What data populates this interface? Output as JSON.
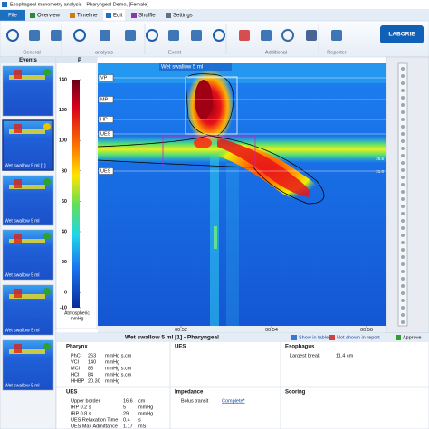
{
  "window": {
    "title": "Esophageal manometry analysis - Pharyngeal Demo, [Female]"
  },
  "tabs": [
    "File",
    "Overview",
    "Timeline",
    "Edit",
    "Shuffle",
    "Settings"
  ],
  "ribbon": {
    "groups": [
      "General",
      "analysis",
      "Event",
      "Additional",
      "Reporter"
    ],
    "logo": "LABORIE"
  },
  "events": {
    "header": "Events",
    "thumbnails": [
      "Wet swallow 5 ml [1]",
      "Wet swallow 5 ml",
      "Wet swallow 5 ml",
      "Wet swallow 5 ml",
      "Wet swallow 5 ml"
    ]
  },
  "colorbar": {
    "header": "P",
    "labels": [
      "140",
      "120",
      "100",
      "80",
      "60",
      "40",
      "20",
      "0",
      "-10"
    ],
    "unit": [
      "Atmospheric",
      "mmHg"
    ]
  },
  "plot": {
    "title": "Wet swallow 5 ml",
    "sensor_labels": [
      "VP",
      "MP",
      "HP",
      "UES",
      "UES"
    ],
    "time_labels": [
      "00:52",
      "00:54",
      "00:56"
    ],
    "depth_labels": [
      "26.6",
      "21.0"
    ]
  },
  "panel": {
    "title": "Wet swallow 5 ml [1]  -  Pharyngeal",
    "buttons": [
      "Show in table",
      "Not shown in report",
      "Approve"
    ]
  },
  "pharynx": {
    "title": "Pharynx",
    "rows": [
      [
        "PhCI",
        "263",
        "mmHg s.cm"
      ],
      [
        "VCI",
        "140",
        "mmHg"
      ],
      [
        "MCI",
        "88",
        "mmHg s.cm"
      ],
      [
        "HCI",
        "84",
        "mmHg s.cm"
      ],
      [
        "HHBP",
        "20.30",
        "mmHg"
      ]
    ]
  },
  "ues_summary": {
    "title": "UES"
  },
  "esophagus": {
    "title": "Esophagus",
    "rows": [
      [
        "Largest break",
        "11.4",
        "cm"
      ]
    ]
  },
  "ues": {
    "title": "UES",
    "rows": [
      [
        "Upper border",
        "16.6",
        "cm"
      ],
      [
        "IRP 0.2 s",
        "5",
        "mmHg"
      ],
      [
        "IRP 0.8 s",
        "29",
        "mmHg"
      ],
      [
        "UES Relaxation Time",
        "0.4",
        "s"
      ],
      [
        "UES Max Admittance",
        "1.17",
        "mS"
      ]
    ]
  },
  "impedance": {
    "title": "Impedance",
    "rows": [
      [
        "Bolus transit",
        "Complete*"
      ]
    ]
  },
  "scoring": {
    "title": "Scoring"
  }
}
